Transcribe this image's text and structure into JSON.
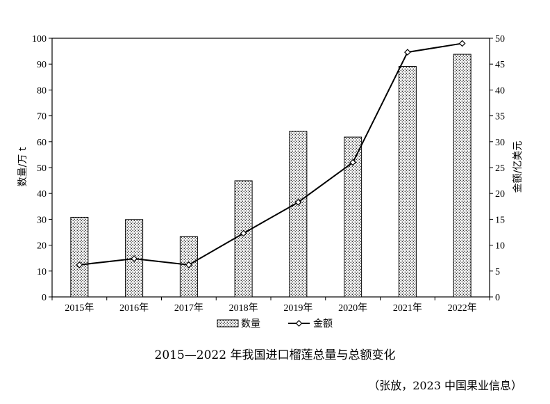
{
  "chart_data": {
    "type": "bar",
    "title": "2015—2022 年我国进口榴莲总量与总额变化",
    "source": "（张放，2023 中国果业信息）",
    "categories": [
      "2015年",
      "2016年",
      "2017年",
      "2018年",
      "2019年",
      "2020年",
      "2021年",
      "2022年"
    ],
    "ylabel": "数量/万 t",
    "y2label": "金额/亿美元",
    "ylim": [
      0,
      100
    ],
    "y2lim": [
      0,
      50
    ],
    "yticks": [
      "0",
      "10",
      "20",
      "30",
      "40",
      "50",
      "60",
      "70",
      "80",
      "90",
      "100"
    ],
    "y2ticks": [
      "0",
      "5",
      "10",
      "15",
      "20",
      "25",
      "30",
      "35",
      "40",
      "45",
      "50"
    ],
    "grid": false,
    "legend_position": "bottom",
    "series": [
      {
        "name": "数量",
        "kind": "bar",
        "axis": "left",
        "pattern": "dotted",
        "values": [
          30.8,
          29.9,
          23.3,
          44.9,
          64.0,
          61.8,
          89.1,
          93.8
        ]
      },
      {
        "name": "金额",
        "kind": "line",
        "axis": "right",
        "marker": "diamond",
        "values": [
          6.2,
          7.4,
          6.2,
          12.3,
          18.3,
          26.0,
          47.3,
          49.0
        ]
      }
    ]
  }
}
